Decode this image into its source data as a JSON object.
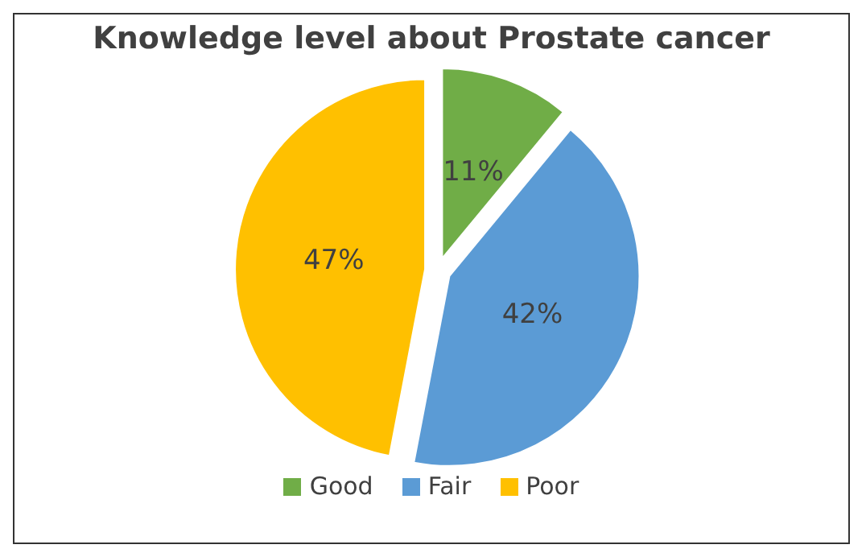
{
  "chart_data": {
    "type": "pie",
    "title": "Knowledge level about Prostate cancer",
    "categories": [
      "Good",
      "Fair",
      "Poor"
    ],
    "values": [
      11,
      42,
      47
    ],
    "colors": [
      "#70ad47",
      "#5b9bd5",
      "#ffc000"
    ],
    "value_labels": [
      "11%",
      "42%",
      "47%"
    ],
    "legend": "bottom"
  }
}
